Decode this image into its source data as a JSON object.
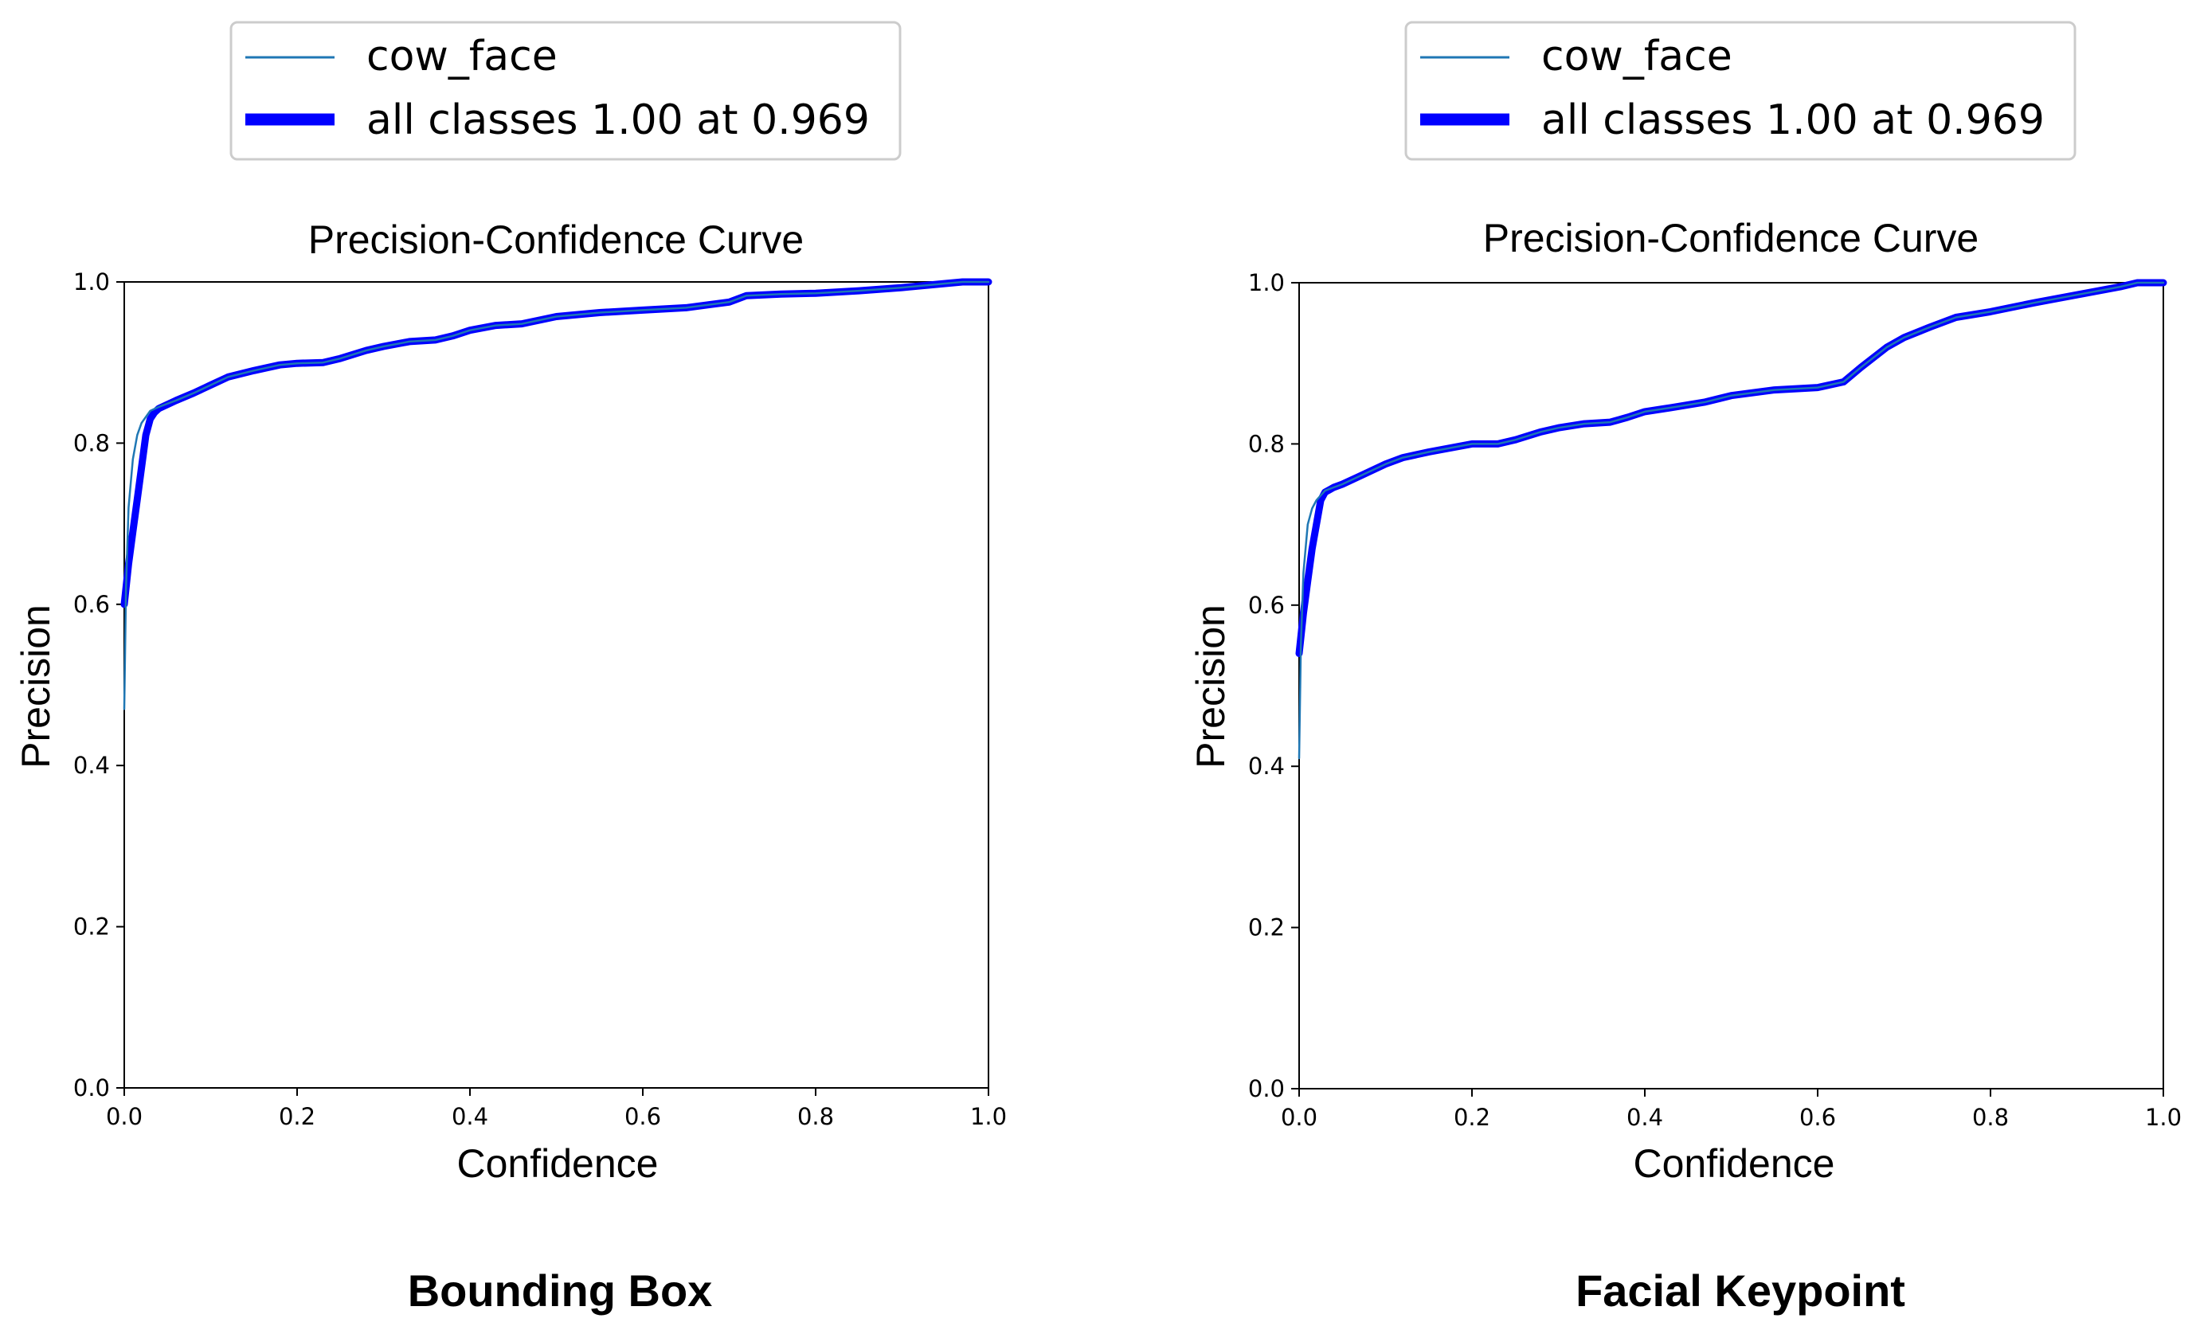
{
  "chart_data": [
    {
      "type": "line",
      "title": "Precision-Confidence Curve",
      "caption": "Bounding Box",
      "xlabel": "Confidence",
      "ylabel": "Precision",
      "xlim": [
        0,
        1
      ],
      "ylim": [
        0,
        1
      ],
      "xticks": [
        "0.0",
        "0.2",
        "0.4",
        "0.6",
        "0.8",
        "1.0"
      ],
      "yticks": [
        "0.0",
        "0.2",
        "0.4",
        "0.6",
        "0.8",
        "1.0"
      ],
      "grid": false,
      "legend": {
        "placement": "top-center",
        "entries": [
          "cow_face",
          "all classes 1.00 at 0.969"
        ]
      },
      "series": [
        {
          "name": "cow_face",
          "color": "#1f77b4",
          "x": [
            0.0,
            0.002,
            0.005,
            0.01,
            0.015,
            0.02,
            0.03,
            0.04,
            0.06,
            0.08,
            0.1,
            0.12,
            0.15,
            0.18,
            0.2,
            0.23,
            0.25,
            0.28,
            0.3,
            0.33,
            0.36,
            0.38,
            0.4,
            0.43,
            0.46,
            0.5,
            0.55,
            0.6,
            0.65,
            0.7,
            0.72,
            0.76,
            0.8,
            0.85,
            0.9,
            0.95,
            0.97,
            1.0
          ],
          "y": [
            0.47,
            0.62,
            0.72,
            0.78,
            0.81,
            0.825,
            0.84,
            0.845,
            0.853,
            0.862,
            0.872,
            0.882,
            0.89,
            0.897,
            0.899,
            0.9,
            0.905,
            0.915,
            0.92,
            0.926,
            0.928,
            0.933,
            0.94,
            0.946,
            0.948,
            0.957,
            0.962,
            0.965,
            0.968,
            0.975,
            0.983,
            0.985,
            0.986,
            0.989,
            0.993,
            0.998,
            1.0,
            1.0
          ]
        },
        {
          "name": "all classes 1.00 at 0.969",
          "color": "#0000ff",
          "x": [
            0.0,
            0.005,
            0.01,
            0.015,
            0.02,
            0.025,
            0.03,
            0.035,
            0.04,
            0.06,
            0.08,
            0.1,
            0.12,
            0.15,
            0.18,
            0.2,
            0.23,
            0.25,
            0.28,
            0.3,
            0.33,
            0.36,
            0.38,
            0.4,
            0.43,
            0.46,
            0.5,
            0.55,
            0.6,
            0.65,
            0.7,
            0.72,
            0.76,
            0.8,
            0.85,
            0.9,
            0.95,
            0.97,
            1.0
          ],
          "y": [
            0.6,
            0.65,
            0.69,
            0.73,
            0.77,
            0.81,
            0.83,
            0.838,
            0.843,
            0.853,
            0.862,
            0.872,
            0.882,
            0.89,
            0.897,
            0.899,
            0.9,
            0.905,
            0.915,
            0.92,
            0.926,
            0.928,
            0.933,
            0.94,
            0.946,
            0.948,
            0.957,
            0.962,
            0.965,
            0.968,
            0.975,
            0.983,
            0.985,
            0.986,
            0.989,
            0.993,
            0.998,
            1.0,
            1.0
          ]
        }
      ]
    },
    {
      "type": "line",
      "title": "Precision-Confidence Curve",
      "caption": "Facial Keypoint",
      "xlabel": "Confidence",
      "ylabel": "Precision",
      "xlim": [
        0,
        1
      ],
      "ylim": [
        0,
        1
      ],
      "xticks": [
        "0.0",
        "0.2",
        "0.4",
        "0.6",
        "0.8",
        "1.0"
      ],
      "yticks": [
        "0.0",
        "0.2",
        "0.4",
        "0.6",
        "0.8",
        "1.0"
      ],
      "grid": false,
      "legend": {
        "placement": "top-center",
        "entries": [
          "cow_face",
          "all classes 1.00 at 0.969"
        ]
      },
      "series": [
        {
          "name": "cow_face",
          "color": "#1f77b4",
          "x": [
            0.0,
            0.002,
            0.005,
            0.01,
            0.015,
            0.02,
            0.03,
            0.04,
            0.05,
            0.07,
            0.1,
            0.12,
            0.15,
            0.2,
            0.23,
            0.25,
            0.28,
            0.3,
            0.33,
            0.36,
            0.38,
            0.4,
            0.43,
            0.47,
            0.5,
            0.55,
            0.6,
            0.63,
            0.65,
            0.68,
            0.7,
            0.73,
            0.76,
            0.8,
            0.85,
            0.9,
            0.95,
            0.97,
            1.0
          ],
          "y": [
            0.41,
            0.55,
            0.64,
            0.7,
            0.72,
            0.73,
            0.742,
            0.746,
            0.75,
            0.76,
            0.775,
            0.783,
            0.79,
            0.8,
            0.8,
            0.805,
            0.815,
            0.82,
            0.825,
            0.827,
            0.833,
            0.84,
            0.845,
            0.852,
            0.86,
            0.867,
            0.87,
            0.877,
            0.895,
            0.92,
            0.932,
            0.945,
            0.957,
            0.964,
            0.975,
            0.985,
            0.995,
            1.0,
            1.0
          ]
        },
        {
          "name": "all classes 1.00 at 0.969",
          "color": "#0000ff",
          "x": [
            0.0,
            0.005,
            0.01,
            0.015,
            0.02,
            0.025,
            0.03,
            0.035,
            0.04,
            0.05,
            0.07,
            0.1,
            0.12,
            0.15,
            0.2,
            0.23,
            0.25,
            0.28,
            0.3,
            0.33,
            0.36,
            0.38,
            0.4,
            0.43,
            0.47,
            0.5,
            0.55,
            0.6,
            0.63,
            0.65,
            0.68,
            0.7,
            0.73,
            0.76,
            0.8,
            0.85,
            0.9,
            0.95,
            0.97,
            1.0
          ],
          "y": [
            0.54,
            0.59,
            0.63,
            0.67,
            0.7,
            0.73,
            0.74,
            0.743,
            0.746,
            0.75,
            0.76,
            0.775,
            0.783,
            0.79,
            0.8,
            0.8,
            0.805,
            0.815,
            0.82,
            0.825,
            0.827,
            0.833,
            0.84,
            0.845,
            0.852,
            0.86,
            0.867,
            0.87,
            0.877,
            0.895,
            0.92,
            0.932,
            0.945,
            0.957,
            0.964,
            0.975,
            0.985,
            0.995,
            1.0,
            1.0
          ]
        }
      ]
    }
  ]
}
